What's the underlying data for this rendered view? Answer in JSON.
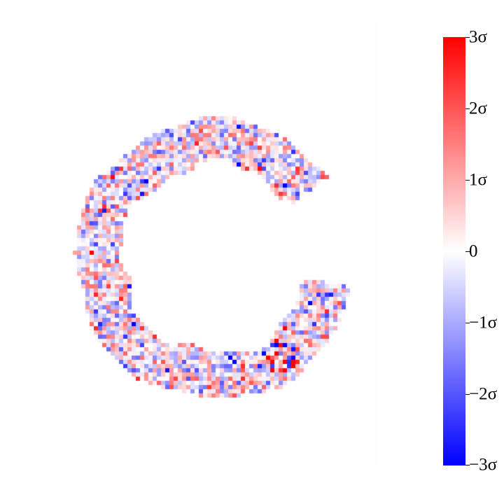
{
  "chart_data": {
    "type": "heatmap",
    "title": "",
    "xlabel": "",
    "ylabel": "",
    "axes_visible": false,
    "grid": false,
    "description_shape": "C-shaped annular arc of residuals (open to the right) on a white background",
    "value_range": [
      -3,
      3
    ],
    "value_unit": "σ",
    "colormap": {
      "name": "bwr",
      "low_color": "#0000ff",
      "mid_color": "#ffffff",
      "high_color": "#ff0000"
    },
    "colorbar": {
      "placement": "right",
      "ticks": [
        3,
        2,
        1,
        0,
        -1,
        -2,
        -3
      ],
      "tick_labels": [
        "3σ",
        "2σ",
        "1σ",
        "0",
        "−1σ",
        "−2σ",
        "−3σ"
      ]
    },
    "notable_features": [
      {
        "note": "cluster of strong positive/negative residual pixels near the lower-right part of the arc"
      }
    ]
  }
}
